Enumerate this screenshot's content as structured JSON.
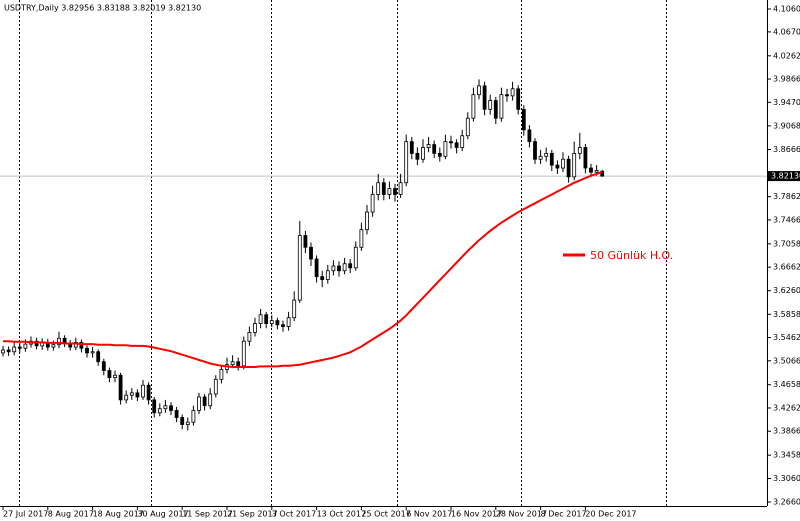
{
  "chart_data": {
    "type": "candlestick",
    "title": "USDTRY,Daily  3.82956 3.83188 3.82019 3.82130",
    "categories": [
      "27 Jul 2017",
      null,
      null,
      null,
      null,
      null,
      null,
      null,
      "8 Aug 2017",
      null,
      null,
      null,
      null,
      null,
      null,
      null,
      "18 Aug 2017",
      null,
      null,
      null,
      null,
      null,
      null,
      null,
      "30 Aug 2017",
      null,
      null,
      null,
      null,
      null,
      null,
      null,
      "11 Sep 2017",
      null,
      null,
      null,
      null,
      null,
      null,
      null,
      "21 Sep 2017",
      null,
      null,
      null,
      null,
      null,
      null,
      null,
      "3 Oct 2017",
      null,
      null,
      null,
      null,
      null,
      null,
      null,
      "13 Oct 2017",
      null,
      null,
      null,
      null,
      null,
      null,
      null,
      "25 Oct 2017",
      null,
      null,
      null,
      null,
      null,
      null,
      null,
      "6 Nov 2017",
      null,
      null,
      null,
      null,
      null,
      null,
      null,
      "16 Nov 2017",
      null,
      null,
      null,
      null,
      null,
      null,
      null,
      "28 Nov 2017",
      null,
      null,
      null,
      null,
      null,
      null,
      null,
      "8 Dec 2017",
      null,
      null,
      null,
      null,
      null,
      null,
      null,
      "20 Dec 2017",
      null,
      null,
      null
    ],
    "open": [
      3.52,
      3.525,
      3.522,
      3.53,
      3.528,
      3.535,
      3.54,
      3.532,
      3.538,
      3.53,
      3.534,
      3.545,
      3.536,
      3.53,
      3.538,
      3.528,
      3.52,
      3.522,
      3.505,
      3.49,
      3.478,
      3.482,
      3.44,
      3.448,
      3.452,
      3.445,
      3.465,
      3.44,
      3.418,
      3.425,
      3.43,
      3.422,
      3.41,
      3.398,
      3.402,
      3.422,
      3.445,
      3.43,
      3.45,
      3.475,
      3.492,
      3.5,
      3.505,
      3.498,
      3.54,
      3.555,
      3.57,
      3.585,
      3.57,
      3.575,
      3.568,
      3.565,
      3.58,
      3.61,
      3.72,
      3.7,
      3.68,
      3.65,
      3.645,
      3.66,
      3.668,
      3.66,
      3.672,
      3.665,
      3.7,
      3.73,
      3.76,
      3.79,
      3.81,
      3.79,
      3.8,
      3.79,
      3.81,
      3.88,
      3.86,
      3.85,
      3.87,
      3.875,
      3.86,
      3.855,
      3.88,
      3.878,
      3.87,
      3.89,
      3.92,
      3.96,
      3.975,
      3.935,
      3.95,
      3.92,
      3.96,
      3.958,
      3.97,
      3.935,
      3.9,
      3.88,
      3.85,
      3.855,
      3.86,
      3.84,
      3.835,
      3.85,
      3.82,
      3.86,
      3.87,
      3.835,
      3.828,
      3.82956
    ],
    "high": [
      3.532,
      3.531,
      3.538,
      3.537,
      3.543,
      3.548,
      3.546,
      3.545,
      3.544,
      3.541,
      3.556,
      3.55,
      3.542,
      3.546,
      3.543,
      3.533,
      3.53,
      3.526,
      3.51,
      3.495,
      3.49,
      3.486,
      3.456,
      3.46,
      3.458,
      3.474,
      3.47,
      3.445,
      3.434,
      3.44,
      3.436,
      3.428,
      3.415,
      3.41,
      3.43,
      3.452,
      3.45,
      3.46,
      3.482,
      3.5,
      3.512,
      3.516,
      3.512,
      3.548,
      3.565,
      3.58,
      3.595,
      3.59,
      3.584,
      3.58,
      3.575,
      3.59,
      3.625,
      3.745,
      3.728,
      3.708,
      3.686,
      3.66,
      3.67,
      3.678,
      3.676,
      3.682,
      3.68,
      3.71,
      3.742,
      3.772,
      3.805,
      3.825,
      3.818,
      3.812,
      3.808,
      3.825,
      3.892,
      3.888,
      3.87,
      3.884,
      3.888,
      3.882,
      3.87,
      3.892,
      3.89,
      3.884,
      3.9,
      3.93,
      3.972,
      3.986,
      3.982,
      3.96,
      3.956,
      3.972,
      3.97,
      3.982,
      3.976,
      3.942,
      3.908,
      3.886,
      3.866,
      3.87,
      3.866,
      3.848,
      3.862,
      3.856,
      3.88,
      3.895,
      3.876,
      3.842,
      3.84,
      3.83188
    ],
    "low": [
      3.514,
      3.515,
      3.516,
      3.52,
      3.522,
      3.529,
      3.526,
      3.525,
      3.524,
      3.524,
      3.528,
      3.53,
      3.524,
      3.525,
      3.521,
      3.512,
      3.512,
      3.498,
      3.482,
      3.47,
      3.47,
      3.432,
      3.434,
      3.44,
      3.438,
      3.44,
      3.432,
      3.41,
      3.412,
      3.418,
      3.414,
      3.402,
      3.39,
      3.388,
      3.396,
      3.416,
      3.422,
      3.424,
      3.444,
      3.468,
      3.485,
      3.494,
      3.49,
      3.492,
      3.532,
      3.548,
      3.562,
      3.562,
      3.564,
      3.56,
      3.556,
      3.558,
      3.574,
      3.605,
      3.69,
      3.668,
      3.64,
      3.632,
      3.638,
      3.652,
      3.65,
      3.654,
      3.656,
      3.66,
      3.694,
      3.722,
      3.752,
      3.78,
      3.78,
      3.782,
      3.778,
      3.784,
      3.804,
      3.85,
      3.84,
      3.844,
      3.862,
      3.852,
      3.846,
      3.85,
      3.868,
      3.86,
      3.864,
      3.884,
      3.914,
      3.952,
      3.925,
      3.926,
      3.91,
      3.914,
      3.948,
      3.95,
      3.926,
      3.89,
      3.87,
      3.842,
      3.842,
      3.846,
      3.83,
      3.825,
      3.828,
      3.81,
      3.814,
      3.85,
      3.826,
      3.82,
      3.822,
      3.82019
    ],
    "close": [
      3.525,
      3.522,
      3.53,
      3.528,
      3.535,
      3.54,
      3.532,
      3.538,
      3.53,
      3.534,
      3.545,
      3.536,
      3.53,
      3.538,
      3.528,
      3.52,
      3.522,
      3.505,
      3.49,
      3.478,
      3.482,
      3.44,
      3.448,
      3.452,
      3.445,
      3.465,
      3.44,
      3.418,
      3.425,
      3.43,
      3.422,
      3.41,
      3.398,
      3.402,
      3.422,
      3.445,
      3.43,
      3.45,
      3.475,
      3.492,
      3.5,
      3.505,
      3.498,
      3.54,
      3.555,
      3.57,
      3.585,
      3.57,
      3.575,
      3.568,
      3.565,
      3.58,
      3.61,
      3.72,
      3.7,
      3.68,
      3.65,
      3.645,
      3.66,
      3.668,
      3.66,
      3.672,
      3.665,
      3.7,
      3.73,
      3.76,
      3.79,
      3.81,
      3.79,
      3.8,
      3.79,
      3.81,
      3.88,
      3.86,
      3.85,
      3.87,
      3.875,
      3.86,
      3.855,
      3.88,
      3.878,
      3.87,
      3.89,
      3.92,
      3.96,
      3.975,
      3.935,
      3.95,
      3.92,
      3.96,
      3.958,
      3.97,
      3.935,
      3.9,
      3.88,
      3.85,
      3.855,
      3.86,
      3.84,
      3.835,
      3.85,
      3.82,
      3.86,
      3.87,
      3.835,
      3.828,
      3.831,
      3.8213
    ],
    "up_color": "#ffffff",
    "down_color": "#000000",
    "series": [
      {
        "name": "50 Günlük H.O.",
        "color": "#ff0000",
        "values": [
          3.54,
          3.54,
          3.539,
          3.539,
          3.539,
          3.538,
          3.538,
          3.538,
          3.537,
          3.537,
          3.537,
          3.536,
          3.536,
          3.536,
          3.535,
          3.535,
          3.535,
          3.534,
          3.534,
          3.534,
          3.533,
          3.533,
          3.533,
          3.532,
          3.532,
          3.532,
          3.531,
          3.529,
          3.527,
          3.525,
          3.523,
          3.52,
          3.517,
          3.514,
          3.511,
          3.508,
          3.505,
          3.502,
          3.5,
          3.498,
          3.497,
          3.496,
          3.496,
          3.496,
          3.496,
          3.496,
          3.497,
          3.497,
          3.497,
          3.497,
          3.498,
          3.498,
          3.499,
          3.5,
          3.502,
          3.504,
          3.506,
          3.508,
          3.51,
          3.512,
          3.515,
          3.518,
          3.521,
          3.526,
          3.531,
          3.537,
          3.543,
          3.549,
          3.555,
          3.561,
          3.568,
          3.575,
          3.584,
          3.594,
          3.604,
          3.614,
          3.624,
          3.634,
          3.644,
          3.654,
          3.664,
          3.674,
          3.684,
          3.694,
          3.703,
          3.712,
          3.72,
          3.728,
          3.735,
          3.742,
          3.748,
          3.754,
          3.76,
          3.765,
          3.77,
          3.775,
          3.78,
          3.785,
          3.79,
          3.795,
          3.8,
          3.805,
          3.81,
          3.814,
          3.818,
          3.822,
          3.825,
          3.828
        ]
      }
    ],
    "last_price": {
      "value": 3.8213,
      "label": "3.82130"
    },
    "ylim": [
      3.2592,
      4.1213
    ],
    "yticks": [
      {
        "value": 4.106,
        "label": "4.10600"
      },
      {
        "value": 4.067,
        "label": "4.06700"
      },
      {
        "value": 4.0262,
        "label": "4.02620"
      },
      {
        "value": 3.9866,
        "label": "3.98660"
      },
      {
        "value": 3.947,
        "label": "3.94700"
      },
      {
        "value": 3.9068,
        "label": "3.90680"
      },
      {
        "value": 3.8666,
        "label": "3.86660"
      },
      {
        "value": 3.7862,
        "label": "3.78620"
      },
      {
        "value": 3.7466,
        "label": "3.74660"
      },
      {
        "value": 3.7058,
        "label": "3.70580"
      },
      {
        "value": 3.6662,
        "label": "3.66620"
      },
      {
        "value": 3.626,
        "label": "3.62600"
      },
      {
        "value": 3.5858,
        "label": "3.58580"
      },
      {
        "value": 3.5462,
        "label": "3.54620"
      },
      {
        "value": 3.5066,
        "label": "3.50660"
      },
      {
        "value": 3.4658,
        "label": "3.46580"
      },
      {
        "value": 3.4262,
        "label": "3.42620"
      },
      {
        "value": 3.3866,
        "label": "3.38660"
      },
      {
        "value": 3.3458,
        "label": "3.34580"
      },
      {
        "value": 3.306,
        "label": "3.30600"
      },
      {
        "value": 3.266,
        "label": "3.26600"
      }
    ]
  }
}
